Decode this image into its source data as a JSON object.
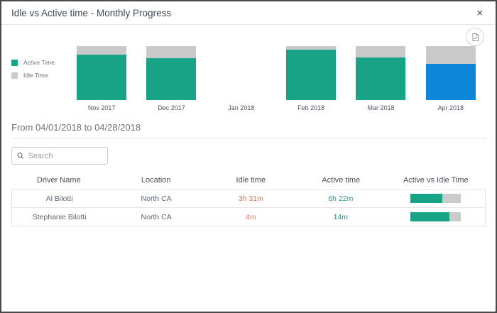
{
  "dialog": {
    "title": "Idle vs Active time - Monthly Progress",
    "close_glyph": "×"
  },
  "colors": {
    "active_teal": "#17a385",
    "idle_gray": "#c9c9c9",
    "selected_blue": "#0c86d8",
    "idle_text_orange": "#df7b58",
    "active_text_teal": "#2b9184"
  },
  "chart_data": {
    "type": "bar",
    "stacked": true,
    "title": "Idle vs Active time - Monthly Progress",
    "categories": [
      "Nov 2017",
      "Dec 2017",
      "Jan 2018",
      "Feb 2018",
      "Mar 2018",
      "Apr 2018"
    ],
    "series": [
      {
        "name": "Active Time",
        "color": "#17a385",
        "values": [
          84,
          78,
          0,
          93,
          79,
          67
        ]
      },
      {
        "name": "Idle Time",
        "color": "#c9c9c9",
        "values": [
          16,
          22,
          0,
          7,
          21,
          33
        ]
      }
    ],
    "highlight": {
      "category": "Apr 2018",
      "index": 5,
      "active_color": "#0c86d8"
    },
    "ylim": [
      0,
      100
    ],
    "grid": false,
    "legend_position": "left",
    "xlabel": "",
    "ylabel": ""
  },
  "period": {
    "label": "From 04/01/2018 to 04/28/2018"
  },
  "search": {
    "placeholder": "Search"
  },
  "table": {
    "columns": [
      "Driver Name",
      "Location",
      "Idle time",
      "Active time",
      "Active vs Idle Time"
    ],
    "rows": [
      {
        "driver": "Al Bilotti",
        "location": "North CA",
        "idle": "3h 31m",
        "active": "6h 22m",
        "active_pct": 64
      },
      {
        "driver": "Stephanie Bilotti",
        "location": "North CA",
        "idle": "4m",
        "active": "14m",
        "active_pct": 78
      }
    ]
  },
  "icons": {
    "close": "close-icon",
    "export": "export-report-icon",
    "search": "search-icon"
  }
}
